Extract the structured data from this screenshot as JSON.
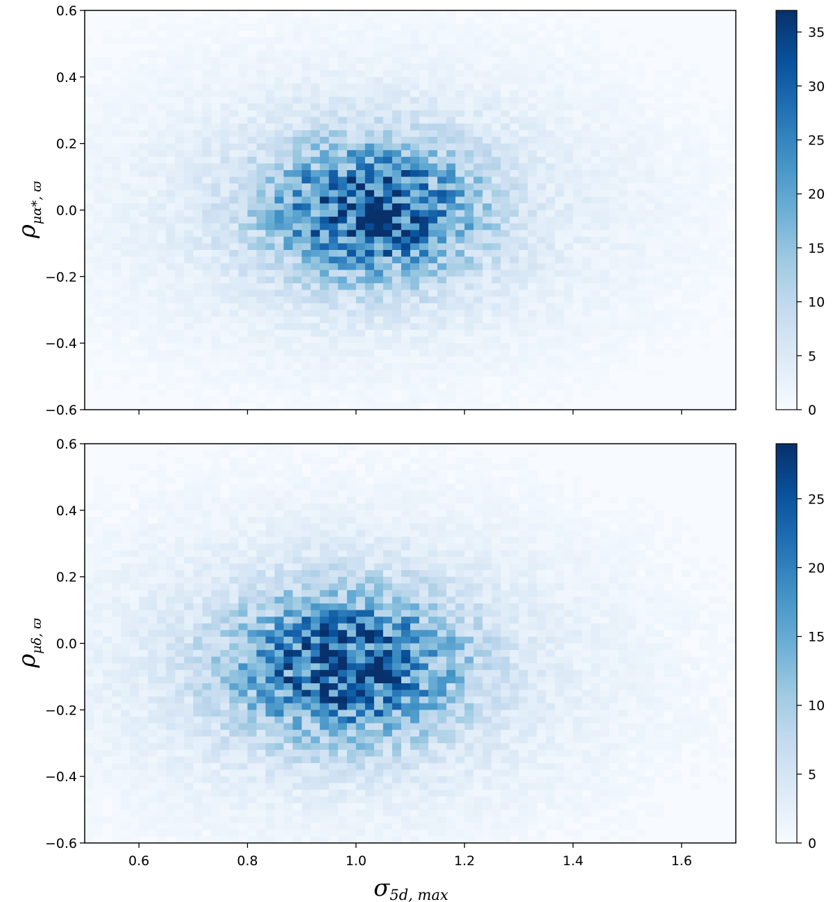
{
  "chart_data": [
    {
      "type": "heatmap",
      "panel": "top",
      "ylabel_main": "ρ",
      "ylabel_sub": "μα*, ϖ",
      "xlabel_main": "",
      "xlabel_sub": "",
      "xlim": [
        0.5,
        1.7
      ],
      "ylim": [
        -0.6,
        0.6
      ],
      "x_ticks": [
        0.6,
        0.8,
        1.0,
        1.2,
        1.4,
        1.6
      ],
      "x_tick_labels_shown": false,
      "y_ticks": [
        -0.6,
        -0.4,
        -0.2,
        0.0,
        0.2,
        0.4,
        0.6
      ],
      "y_tick_labels": [
        "−0.6",
        "−0.4",
        "−0.2",
        "0.0",
        "0.2",
        "0.4",
        "0.6"
      ],
      "colorbar": {
        "min": 0,
        "max": 37,
        "ticks": [
          0,
          5,
          10,
          15,
          20,
          25,
          30,
          35
        ],
        "tick_labels": [
          "0",
          "5",
          "10",
          "15",
          "20",
          "25",
          "30",
          "35"
        ],
        "colormap": "Blues"
      },
      "density": {
        "center_x": 1.03,
        "center_y": 0.0,
        "sigma_x": 0.13,
        "sigma_y": 0.14,
        "peak": 37
      },
      "bins": {
        "nx": 72,
        "ny": 60
      }
    },
    {
      "type": "heatmap",
      "panel": "bottom",
      "ylabel_main": "ρ",
      "ylabel_sub": "μδ, ϖ",
      "xlabel_main": "σ",
      "xlabel_sub": "5d, max",
      "xlim": [
        0.5,
        1.7
      ],
      "ylim": [
        -0.6,
        0.6
      ],
      "x_ticks": [
        0.6,
        0.8,
        1.0,
        1.2,
        1.4,
        1.6
      ],
      "x_tick_labels": [
        "0.6",
        "0.8",
        "1.0",
        "1.2",
        "1.4",
        "1.6"
      ],
      "x_tick_labels_shown": true,
      "y_ticks": [
        -0.6,
        -0.4,
        -0.2,
        0.0,
        0.2,
        0.4,
        0.6
      ],
      "y_tick_labels": [
        "−0.6",
        "−0.4",
        "−0.2",
        "0.0",
        "0.2",
        "0.4",
        "0.6"
      ],
      "colorbar": {
        "min": 0,
        "max": 29,
        "ticks": [
          0,
          5,
          10,
          15,
          20,
          25
        ],
        "tick_labels": [
          "0",
          "5",
          "10",
          "15",
          "20",
          "25"
        ],
        "colormap": "Blues"
      },
      "density": {
        "center_x": 0.98,
        "center_y": -0.07,
        "sigma_x": 0.14,
        "sigma_y": 0.15,
        "peak": 29
      },
      "bins": {
        "nx": 72,
        "ny": 60
      }
    }
  ]
}
